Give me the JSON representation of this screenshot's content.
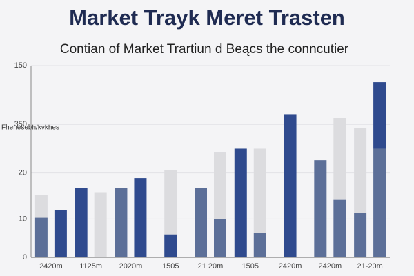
{
  "chart_data": {
    "type": "bar",
    "title": "Market Trayk Meret Trasten",
    "subtitle": "Contian of Market Trartiun d Beącs the conncutier",
    "y_label": "Fhenesebh/kvkhes",
    "categories": [
      "2420m",
      "1125m",
      "2020m",
      "1505",
      "21 20m",
      "1505",
      "2420m",
      "2420m",
      "21-20m"
    ],
    "series": [
      {
        "values": [
          31,
          54,
          54,
          18,
          54,
          85,
          112,
          76,
          35
        ],
        "colors": [
          "#5c6f98",
          "#2f4a8e",
          "#5c6f98",
          "#2f4a8e",
          "#5c6f98",
          "#2f4a8e",
          "#2f4a8e",
          "#5c6f98",
          "#5c6f98"
        ]
      },
      {
        "values": [
          18,
          null,
          null,
          50,
          null,
          null,
          null,
          null,
          66
        ],
        "colors": [
          "#dcdcdf",
          null,
          null,
          "#dcdcdf",
          null,
          null,
          null,
          null,
          "#dcdcdf"
        ]
      },
      {
        "values": [
          37,
          51,
          62,
          null,
          30,
          19,
          null,
          45,
          85
        ],
        "colors": [
          "#2f4a8e",
          "#dcdcdf",
          "#2f4a8e",
          null,
          "#5c6f98",
          "#5c6f98",
          null,
          "#5c6f98",
          "#5c6f98"
        ]
      },
      {
        "values": [
          null,
          null,
          null,
          null,
          52,
          66,
          null,
          64,
          52
        ],
        "colors": [
          null,
          null,
          null,
          null,
          "#dcdcdf",
          "#dcdcdf",
          null,
          "#dcdcdf",
          "#2f4a8e"
        ]
      }
    ],
    "ylim": [
      0,
      150
    ],
    "yticks": [
      0,
      {
        "value": 30,
        "label": "10"
      },
      {
        "value": 66,
        "label": "20"
      },
      {
        "value": 104,
        "label": "350"
      },
      150
    ],
    "grid": true
  }
}
